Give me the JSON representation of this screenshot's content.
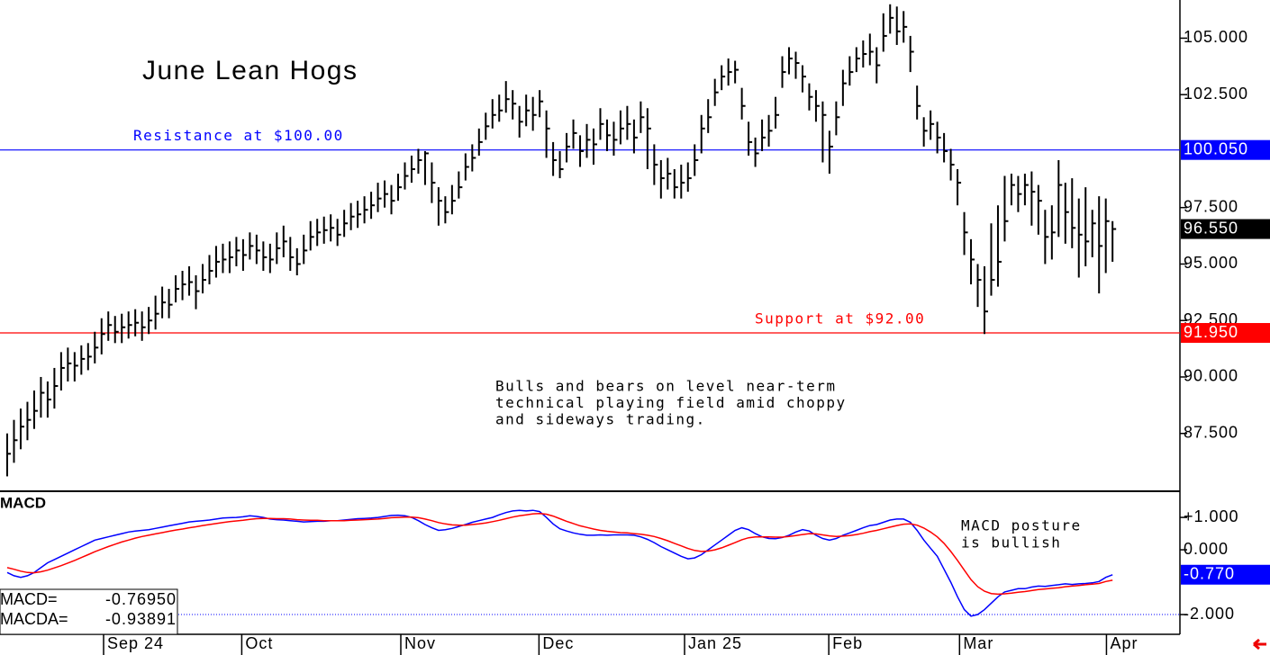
{
  "chart_data": [
    {
      "type": "ohlc",
      "title": "June Lean Hogs",
      "annotation": [
        "Bulls and bears on level near-term",
        "technical playing field amid choppy",
        "and sideways trading."
      ],
      "color": "#000000",
      "high": [
        87.5,
        88.1,
        88.6,
        88.9,
        89.4,
        90.0,
        89.8,
        90.4,
        91.1,
        91.3,
        91.1,
        91.4,
        91.5,
        92.0,
        92.6,
        92.9,
        92.7,
        92.8,
        92.9,
        93.0,
        92.9,
        93.1,
        93.6,
        94.0,
        93.9,
        94.5,
        94.7,
        94.9,
        94.5,
        95.0,
        95.4,
        95.8,
        95.9,
        96.0,
        96.2,
        96.1,
        96.4,
        96.3,
        96.0,
        95.9,
        96.4,
        96.7,
        96.2,
        95.7,
        96.3,
        96.9,
        97.0,
        97.1,
        97.2,
        97.0,
        97.4,
        97.7,
        97.8,
        98.0,
        98.2,
        98.6,
        98.7,
        98.5,
        99.0,
        99.5,
        99.8,
        100.1,
        100.0,
        99.5,
        98.4,
        98.0,
        98.5,
        99.1,
        99.9,
        100.3,
        101.0,
        101.7,
        102.3,
        102.5,
        103.1,
        102.7,
        102.0,
        102.5,
        102.4,
        102.7,
        101.8,
        100.4,
        100.0,
        100.8,
        101.4,
        100.7,
        101.2,
        101.0,
        101.9,
        101.4,
        101.3,
        101.8,
        102.0,
        101.4,
        102.2,
        101.9,
        100.3,
        99.6,
        99.7,
        99.2,
        99.4,
        99.5,
        100.3,
        101.6,
        102.3,
        103.2,
        103.8,
        104.1,
        104.0,
        102.8,
        101.3,
        100.6,
        101.4,
        101.6,
        102.4,
        104.2,
        104.6,
        104.4,
        103.8,
        103.0,
        102.7,
        102.2,
        100.9,
        102.2,
        103.6,
        104.2,
        104.6,
        104.9,
        105.2,
        104.6,
        106.1,
        106.5,
        106.4,
        106.2,
        105.1,
        102.9,
        101.5,
        101.8,
        101.3,
        100.8,
        100.1,
        99.2,
        97.3,
        96.1,
        95.0,
        94.9,
        96.8,
        97.6,
        98.9,
        99.0,
        98.9,
        99.0,
        99.1,
        98.5,
        97.4,
        97.6,
        99.6,
        98.6,
        98.8,
        97.9,
        98.4,
        97.4,
        98.0,
        97.9,
        96.9
      ],
      "low": [
        85.6,
        86.2,
        86.8,
        87.2,
        87.7,
        88.2,
        88.2,
        88.6,
        89.4,
        89.8,
        89.8,
        90.1,
        90.3,
        90.6,
        91.0,
        91.6,
        91.5,
        91.5,
        91.7,
        91.8,
        91.6,
        91.9,
        92.1,
        92.6,
        92.6,
        93.3,
        93.4,
        93.6,
        93.0,
        93.7,
        94.1,
        94.4,
        94.6,
        94.6,
        94.9,
        94.7,
        95.2,
        95.0,
        94.7,
        94.6,
        95.0,
        95.3,
        94.7,
        94.5,
        95.0,
        95.6,
        95.8,
        95.9,
        96.0,
        95.8,
        96.2,
        96.5,
        96.6,
        96.8,
        97.0,
        97.3,
        97.5,
        97.2,
        97.8,
        98.3,
        98.6,
        99.0,
        98.5,
        97.7,
        96.7,
        96.8,
        97.2,
        97.9,
        98.7,
        99.1,
        99.8,
        100.5,
        101.0,
        101.3,
        101.7,
        101.4,
        100.6,
        101.1,
        100.9,
        101.5,
        99.7,
        98.9,
        98.8,
        99.5,
        100.1,
        99.3,
        99.7,
        99.4,
        100.5,
        100.0,
        99.8,
        100.3,
        100.5,
        99.9,
        100.8,
        99.2,
        98.5,
        97.9,
        98.3,
        97.9,
        97.9,
        98.2,
        98.9,
        99.9,
        100.8,
        102.0,
        102.7,
        102.9,
        103.0,
        101.4,
        99.8,
        99.3,
        100.0,
        100.2,
        101.0,
        102.8,
        103.4,
        103.2,
        102.6,
        101.8,
        101.3,
        99.5,
        99.0,
        100.7,
        102.0,
        102.9,
        103.5,
        103.7,
        103.8,
        103.0,
        104.4,
        105.2,
        104.7,
        104.8,
        103.5,
        101.4,
        100.2,
        100.5,
        99.9,
        99.5,
        98.7,
        97.6,
        95.4,
        94.1,
        93.1,
        91.9,
        93.6,
        94.0,
        96.0,
        97.6,
        97.3,
        97.6,
        96.7,
        96.3,
        95.0,
        95.2,
        96.2,
        95.9,
        95.7,
        94.4,
        94.9,
        95.3,
        93.7,
        94.6,
        95.1
      ],
      "close": [
        86.6,
        87.2,
        87.8,
        88.1,
        88.5,
        89.3,
        89.0,
        89.6,
        90.4,
        90.6,
        90.5,
        90.8,
        90.9,
        91.3,
        91.9,
        92.3,
        92.0,
        92.2,
        92.3,
        92.4,
        92.2,
        92.5,
        92.8,
        93.3,
        93.2,
        93.9,
        94.1,
        94.2,
        93.8,
        94.3,
        94.7,
        95.1,
        95.2,
        95.3,
        95.6,
        95.4,
        95.8,
        95.6,
        95.3,
        95.2,
        95.7,
        96.0,
        95.3,
        95.0,
        95.6,
        96.2,
        96.4,
        96.5,
        96.6,
        96.3,
        96.8,
        97.1,
        97.2,
        97.4,
        97.6,
        97.9,
        98.1,
        97.8,
        98.4,
        98.9,
        99.2,
        99.6,
        99.9,
        98.6,
        97.8,
        97.3,
        97.8,
        98.4,
        99.3,
        99.7,
        100.4,
        101.1,
        101.6,
        101.8,
        102.3,
        102.1,
        101.3,
        101.8,
        101.6,
        102.2,
        101.0,
        99.6,
        99.2,
        100.2,
        100.8,
        100.0,
        100.5,
        100.3,
        101.2,
        100.7,
        100.5,
        101.0,
        101.2,
        100.6,
        101.5,
        101.0,
        99.4,
        98.8,
        99.0,
        98.4,
        98.6,
        98.8,
        99.6,
        101.0,
        101.5,
        102.6,
        103.3,
        103.5,
        103.6,
        102.0,
        100.4,
        99.9,
        100.6,
        100.9,
        101.6,
        103.5,
        104.1,
        103.9,
        103.3,
        102.4,
        102.0,
        101.6,
        100.2,
        101.5,
        103.0,
        103.5,
        104.1,
        104.3,
        104.4,
        103.8,
        105.1,
        105.9,
        105.3,
        105.5,
        104.4,
        102.0,
        100.9,
        101.2,
        100.6,
        100.0,
        99.4,
        98.6,
        96.4,
        95.2,
        94.3,
        92.9,
        94.3,
        95.1,
        96.9,
        98.5,
        98.1,
        98.5,
        98.2,
        97.8,
        96.2,
        96.4,
        98.5,
        97.3,
        96.6,
        96.3,
        96.0,
        96.8,
        95.8,
        96.9,
        96.55
      ],
      "last_label": "96.550",
      "xlim": [
        -1.07,
        174.0
      ],
      "xticks": [
        {
          "value": 14.3,
          "label": "Sep 24"
        },
        {
          "value": 34.8,
          "label": "Oct"
        },
        {
          "value": 58.4,
          "label": "Nov"
        },
        {
          "value": 78.9,
          "label": "Dec"
        },
        {
          "value": 100.5,
          "label": "Jan 25"
        },
        {
          "value": 121.9,
          "label": "Feb"
        },
        {
          "value": 141.3,
          "label": "Mar"
        },
        {
          "value": 163.1,
          "label": "Apr"
        }
      ],
      "ylim": [
        84.98,
        106.69
      ],
      "yticks": [
        {
          "value": 87.5,
          "label": "87.500"
        },
        {
          "value": 90,
          "label": "90.000"
        },
        {
          "value": 92.5,
          "label": "92.500"
        },
        {
          "value": 95,
          "label": "95.000"
        },
        {
          "value": 97.5,
          "label": "97.500"
        },
        {
          "value": 102.5,
          "label": "102.500"
        },
        {
          "value": 105,
          "label": "105.000"
        }
      ],
      "hlines": [
        {
          "label": "Resistance at $100.00",
          "value": 100.05,
          "axis_label": "100.050",
          "color": "#0000ff"
        },
        {
          "label": "Support at $92.00",
          "value": 91.95,
          "axis_label": "91.950",
          "color": "#ff0000"
        }
      ]
    },
    {
      "type": "line",
      "title": "MACD",
      "annotation": [
        "MACD posture",
        "is bullish"
      ],
      "ylim": [
        -2.61,
        1.78
      ],
      "yticks": [
        {
          "value": 1,
          "label": "+1.000"
        },
        {
          "value": 0,
          "label": "0.000"
        },
        {
          "value": -2,
          "label": "-2.000"
        }
      ],
      "series": [
        {
          "name": "MACD",
          "color": "#0000ff",
          "readout_label": "MACD=",
          "readout_value": "-0.76950",
          "axis_label": "-0.770",
          "values": [
            -0.7,
            -0.8,
            -0.85,
            -0.8,
            -0.7,
            -0.55,
            -0.4,
            -0.3,
            -0.2,
            -0.1,
            0.0,
            0.1,
            0.2,
            0.3,
            0.35,
            0.4,
            0.45,
            0.5,
            0.55,
            0.58,
            0.6,
            0.62,
            0.66,
            0.7,
            0.74,
            0.78,
            0.82,
            0.86,
            0.88,
            0.9,
            0.92,
            0.95,
            0.98,
            0.99,
            1.0,
            1.02,
            1.05,
            1.03,
            1.0,
            0.95,
            0.93,
            0.92,
            0.9,
            0.88,
            0.86,
            0.87,
            0.88,
            0.88,
            0.9,
            0.9,
            0.92,
            0.94,
            0.96,
            0.97,
            0.98,
            1.0,
            1.03,
            1.06,
            1.07,
            1.05,
            1.0,
            0.9,
            0.78,
            0.68,
            0.6,
            0.62,
            0.66,
            0.72,
            0.78,
            0.85,
            0.9,
            0.95,
            1.0,
            1.08,
            1.15,
            1.2,
            1.22,
            1.2,
            1.22,
            1.18,
            1.0,
            0.8,
            0.65,
            0.58,
            0.52,
            0.48,
            0.45,
            0.45,
            0.46,
            0.45,
            0.46,
            0.46,
            0.46,
            0.45,
            0.4,
            0.32,
            0.22,
            0.1,
            0.0,
            -0.1,
            -0.2,
            -0.28,
            -0.25,
            -0.15,
            0.0,
            0.15,
            0.3,
            0.45,
            0.6,
            0.68,
            0.62,
            0.5,
            0.4,
            0.35,
            0.34,
            0.38,
            0.45,
            0.55,
            0.62,
            0.58,
            0.45,
            0.35,
            0.3,
            0.35,
            0.45,
            0.52,
            0.6,
            0.68,
            0.75,
            0.78,
            0.85,
            0.92,
            0.95,
            0.95,
            0.85,
            0.6,
            0.3,
            0.05,
            -0.2,
            -0.6,
            -1.0,
            -1.45,
            -1.85,
            -2.05,
            -2.0,
            -1.85,
            -1.65,
            -1.45,
            -1.3,
            -1.25,
            -1.2,
            -1.2,
            -1.15,
            -1.12,
            -1.13,
            -1.1,
            -1.08,
            -1.05,
            -1.07,
            -1.05,
            -1.04,
            -1.02,
            -0.98,
            -0.85,
            -0.7695
          ]
        },
        {
          "name": "MACDA",
          "color": "#ff0000",
          "readout_label": "MACDA=",
          "readout_value": "-0.93891",
          "values": [
            -0.55,
            -0.6,
            -0.66,
            -0.7,
            -0.71,
            -0.68,
            -0.63,
            -0.56,
            -0.49,
            -0.41,
            -0.33,
            -0.24,
            -0.15,
            -0.06,
            0.02,
            0.1,
            0.17,
            0.24,
            0.3,
            0.36,
            0.41,
            0.45,
            0.49,
            0.53,
            0.57,
            0.61,
            0.64,
            0.68,
            0.71,
            0.75,
            0.78,
            0.81,
            0.84,
            0.87,
            0.89,
            0.91,
            0.94,
            0.96,
            0.97,
            0.97,
            0.96,
            0.96,
            0.95,
            0.93,
            0.92,
            0.91,
            0.91,
            0.9,
            0.9,
            0.9,
            0.9,
            0.91,
            0.92,
            0.93,
            0.94,
            0.95,
            0.97,
            0.99,
            1.0,
            1.01,
            1.01,
            0.99,
            0.95,
            0.9,
            0.84,
            0.8,
            0.77,
            0.76,
            0.76,
            0.78,
            0.8,
            0.83,
            0.87,
            0.91,
            0.96,
            1.01,
            1.05,
            1.08,
            1.11,
            1.12,
            1.1,
            1.04,
            0.96,
            0.88,
            0.81,
            0.74,
            0.69,
            0.64,
            0.6,
            0.57,
            0.55,
            0.53,
            0.52,
            0.5,
            0.48,
            0.45,
            0.41,
            0.35,
            0.28,
            0.2,
            0.12,
            0.04,
            -0.02,
            -0.05,
            -0.04,
            0.0,
            0.06,
            0.14,
            0.22,
            0.31,
            0.37,
            0.4,
            0.4,
            0.4,
            0.39,
            0.39,
            0.41,
            0.44,
            0.47,
            0.5,
            0.49,
            0.46,
            0.43,
            0.41,
            0.42,
            0.44,
            0.47,
            0.51,
            0.56,
            0.6,
            0.65,
            0.7,
            0.75,
            0.79,
            0.8,
            0.76,
            0.67,
            0.55,
            0.4,
            0.2,
            -0.05,
            -0.33,
            -0.63,
            -0.92,
            -1.14,
            -1.28,
            -1.35,
            -1.37,
            -1.36,
            -1.34,
            -1.31,
            -1.29,
            -1.26,
            -1.23,
            -1.21,
            -1.19,
            -1.17,
            -1.14,
            -1.12,
            -1.1,
            -1.08,
            -1.06,
            -1.04,
            -0.98,
            -0.93891
          ]
        }
      ]
    }
  ]
}
